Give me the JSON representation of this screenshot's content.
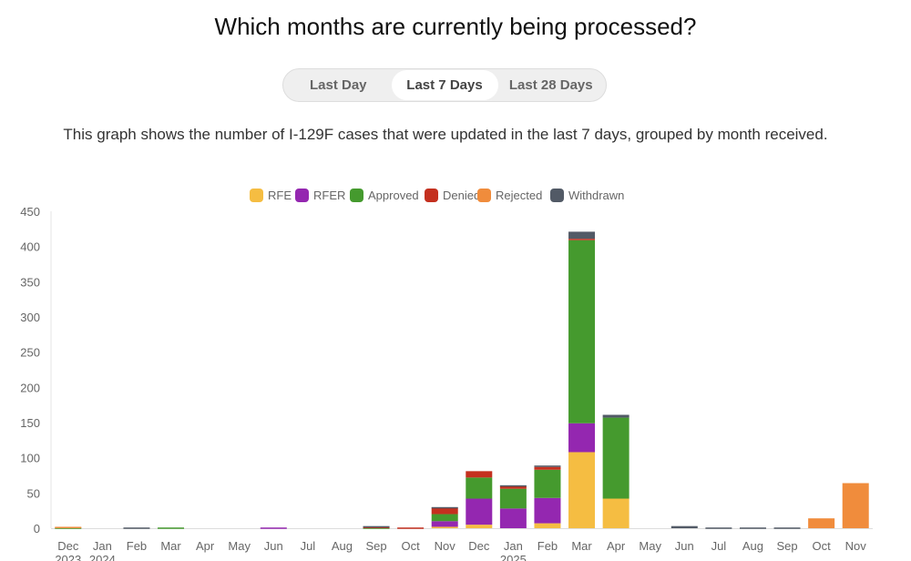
{
  "header": {
    "title": "Which months are currently being processed?"
  },
  "toggle": {
    "options": [
      "Last Day",
      "Last 7 Days",
      "Last 28 Days"
    ],
    "selected": "Last 7 Days"
  },
  "description": "This graph shows the number of I-129F cases that were updated in the last 7 days, grouped by month received.",
  "chart_data": {
    "type": "bar",
    "stacked": true,
    "categories": [
      [
        "Dec",
        "2023"
      ],
      [
        "Jan",
        "2024"
      ],
      [
        "Feb"
      ],
      [
        "Mar"
      ],
      [
        "Apr"
      ],
      [
        "May"
      ],
      [
        "Jun"
      ],
      [
        "Jul"
      ],
      [
        "Aug"
      ],
      [
        "Sep"
      ],
      [
        "Oct"
      ],
      [
        "Nov"
      ],
      [
        "Dec"
      ],
      [
        "Jan",
        "2025"
      ],
      [
        "Feb"
      ],
      [
        "Mar"
      ],
      [
        "Apr"
      ],
      [
        "May"
      ],
      [
        "Jun"
      ],
      [
        "Jul"
      ],
      [
        "Aug"
      ],
      [
        "Sep"
      ],
      [
        "Oct"
      ],
      [
        "Nov"
      ]
    ],
    "ylim": [
      0,
      450
    ],
    "yticks": [
      0,
      50,
      100,
      150,
      200,
      250,
      300,
      350,
      400,
      450
    ],
    "grid": false,
    "legend": "top",
    "series": [
      {
        "name": "RFE",
        "color": "#f5bd42",
        "values": [
          0,
          0,
          0,
          0,
          0,
          0,
          0,
          0,
          0,
          0,
          0,
          2,
          5,
          0,
          7,
          108,
          42,
          0,
          0,
          0,
          0,
          0,
          0,
          0
        ]
      },
      {
        "name": "RFER",
        "color": "#9427b0",
        "values": [
          0,
          0,
          0,
          0,
          0,
          0,
          1,
          0,
          0,
          0,
          0,
          8,
          37,
          28,
          36,
          41,
          0,
          0,
          0,
          0,
          0,
          0,
          0,
          0
        ]
      },
      {
        "name": "Approved",
        "color": "#459a2e",
        "values": [
          1,
          0,
          0,
          1,
          0,
          0,
          0,
          0,
          0,
          1,
          0,
          10,
          30,
          28,
          40,
          260,
          115,
          0,
          0,
          0,
          0,
          0,
          0,
          0
        ]
      },
      {
        "name": "Denied",
        "color": "#c4301f",
        "values": [
          0,
          0,
          0,
          0,
          0,
          0,
          0,
          0,
          0,
          1,
          1,
          9,
          9,
          4,
          4,
          2,
          0,
          0,
          0,
          0,
          0,
          0,
          0,
          0
        ]
      },
      {
        "name": "Rejected",
        "color": "#f08c3c",
        "values": [
          1,
          0,
          0,
          0,
          0,
          0,
          0,
          0,
          0,
          0,
          0,
          0,
          0,
          0,
          0,
          0,
          0,
          0,
          0,
          0,
          0,
          0,
          14,
          64
        ]
      },
      {
        "name": "Withdrawn",
        "color": "#525a66",
        "values": [
          0,
          0,
          1,
          0,
          0,
          0,
          0,
          0,
          0,
          1,
          0,
          1,
          0,
          1,
          2,
          10,
          4,
          0,
          3,
          1,
          1,
          1,
          0,
          0
        ]
      }
    ]
  }
}
